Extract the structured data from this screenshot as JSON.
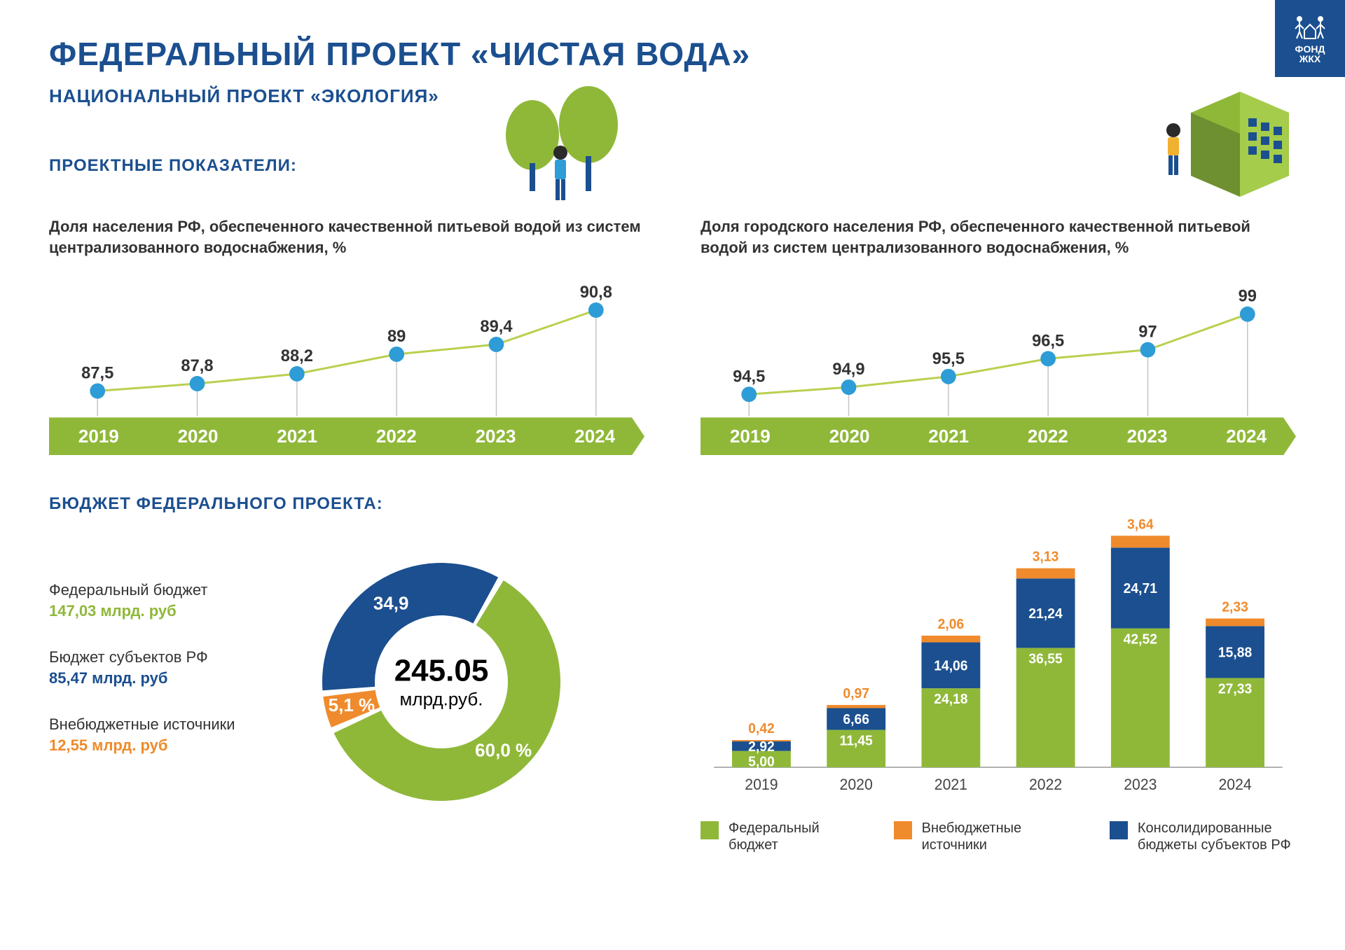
{
  "colors": {
    "brand_blue": "#1b4f8f",
    "axis_green": "#8fb839",
    "line_green": "#b9d04e",
    "marker_blue": "#2e9cd6",
    "donut_green": "#8fb839",
    "donut_blue": "#1b4f8f",
    "donut_orange": "#ef8b2c",
    "bar_green": "#8fb839",
    "bar_blue": "#1b4f8f",
    "bar_orange": "#ef8b2c",
    "gray_line": "#c4c4c4"
  },
  "logo": {
    "line1": "ФОНД",
    "line2": "ЖКХ"
  },
  "header": {
    "title": "ФЕДЕРАЛЬНЫЙ ПРОЕКТ «ЧИСТАЯ ВОДА»",
    "subtitle": "НАЦИОНАЛЬНЫЙ ПРОЕКТ «ЭКОЛОГИЯ»"
  },
  "indicators_heading": "ПРОЕКТНЫЕ ПОКАЗАТЕЛИ:",
  "years": [
    "2019",
    "2020",
    "2021",
    "2022",
    "2023",
    "2024"
  ],
  "chart_left": {
    "desc": "Доля населения РФ, обеспеченного качественной питьевой водой из систем централизованного водоснабжения, %",
    "values": [
      87.5,
      87.8,
      88.2,
      89,
      89.4,
      90.8
    ],
    "labels": [
      "87,5",
      "87,8",
      "88,2",
      "89",
      "89,4",
      "90,8"
    ],
    "ylim": [
      87,
      91
    ],
    "marker_radius": 11
  },
  "chart_right": {
    "desc": "Доля городского населения РФ, обеспеченного качественной питьевой водой из систем централизованного водоснабжения, %",
    "values": [
      94.5,
      94.9,
      95.5,
      96.5,
      97,
      99
    ],
    "labels": [
      "94,5",
      "94,9",
      "95,5",
      "96,5",
      "97",
      "99"
    ],
    "ylim": [
      94,
      99.5
    ],
    "marker_radius": 11
  },
  "budget_heading": "БЮДЖЕТ ФЕДЕРАЛЬНОГО ПРОЕКТА:",
  "donut": {
    "total_value": "245.05",
    "total_unit": "млрд.руб.",
    "gap_deg": 3,
    "slices": [
      {
        "label": "Федеральный бюджет",
        "amount": "147,03 млрд. руб",
        "pct": 60.0,
        "pct_label": "60,0 %",
        "color_key": "donut_green"
      },
      {
        "label": "Бюджет субъектов РФ",
        "amount": "85,47 млрд. руб",
        "pct": 34.9,
        "pct_label": "34,9",
        "color_key": "donut_blue"
      },
      {
        "label": "Внебюджетные источники",
        "amount": "12,55 млрд. руб",
        "pct": 5.1,
        "pct_label": "5,1 %",
        "color_key": "donut_orange"
      }
    ]
  },
  "stacked": {
    "ymax": 75,
    "years": [
      "2019",
      "2020",
      "2021",
      "2022",
      "2023",
      "2024"
    ],
    "series": [
      {
        "key": "federal",
        "color_key": "bar_green",
        "values": [
          5.0,
          11.45,
          24.18,
          36.55,
          42.52,
          27.33
        ],
        "labels": [
          "5,00",
          "11,45",
          "24,18",
          "36,55",
          "42,52",
          "27,33"
        ]
      },
      {
        "key": "regional",
        "color_key": "bar_blue",
        "values": [
          2.92,
          6.66,
          14.06,
          21.24,
          24.71,
          15.88
        ],
        "labels": [
          "2,92",
          "6,66",
          "14,06",
          "21,24",
          "24,71",
          "15,88"
        ]
      },
      {
        "key": "extra",
        "color_key": "bar_orange",
        "values": [
          0.42,
          0.97,
          2.06,
          3.13,
          3.64,
          2.33
        ],
        "labels": [
          "0,42",
          "0,97",
          "2,06",
          "3,13",
          "3,64",
          "2,33"
        ]
      }
    ],
    "legend": [
      {
        "text": "Федеральный бюджет",
        "color_key": "bar_green"
      },
      {
        "text": "Внебюджетные источники",
        "color_key": "bar_orange"
      },
      {
        "text": "Консолидированные бюджеты субъектов РФ",
        "color_key": "bar_blue"
      }
    ]
  }
}
